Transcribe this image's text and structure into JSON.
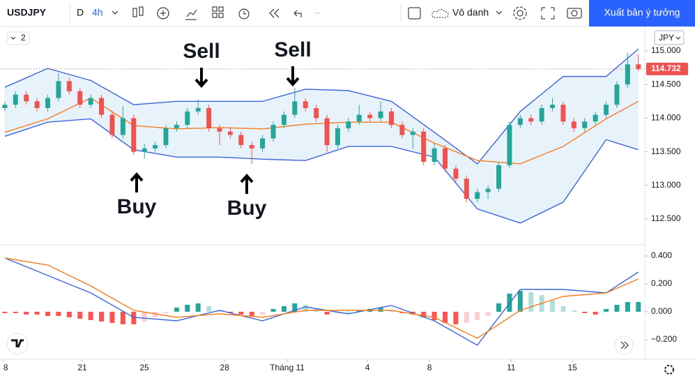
{
  "toolbar": {
    "symbol": "USDJPY",
    "interval_d": "D",
    "interval": "4h",
    "layout_name": "Vô danh",
    "publish": "Xuất bản ý tưởng",
    "indicator_count": "2",
    "currency": "JPY"
  },
  "chart_data": [
    {
      "type": "candlestick",
      "up_color": "#26a69a",
      "down_color": "#ef5350",
      "band_fill": "#e8f2fb",
      "annotations": [
        "Sell",
        "Sell",
        "Buy",
        "Buy"
      ],
      "xlim": [
        -0.45,
        59.6
      ],
      "xticks": [
        {
          "value": -0.13,
          "label": "8"
        },
        {
          "value": 7.21,
          "label": "21"
        },
        {
          "value": 12.99,
          "label": "25"
        },
        {
          "value": 20.46,
          "label": "28"
        },
        {
          "value": 26.3,
          "label": "Tháng 11"
        },
        {
          "value": 33.77,
          "label": "4"
        },
        {
          "value": 39.55,
          "label": "8"
        },
        {
          "value": 47.15,
          "label": "11"
        },
        {
          "value": 52.86,
          "label": "15"
        }
      ],
      "ylim": [
        112.127,
        115.363
      ],
      "yticks": [
        {
          "value": 112.5,
          "label": "112.500"
        },
        {
          "value": 113,
          "label": "113.000"
        },
        {
          "value": 113.5,
          "label": "113.500"
        },
        {
          "value": 114,
          "label": "114.000"
        },
        {
          "value": 114.5,
          "label": "114.500"
        },
        {
          "value": 115,
          "label": "115.000"
        }
      ],
      "candles": [
        [
          114.15,
          114.25,
          114.1,
          114.2
        ],
        [
          114.2,
          114.4,
          114.15,
          114.35
        ],
        [
          114.35,
          114.4,
          114.2,
          114.25
        ],
        [
          114.25,
          114.3,
          114.1,
          114.15
        ],
        [
          114.15,
          114.35,
          114.1,
          114.3
        ],
        [
          114.3,
          114.67,
          114.25,
          114.55
        ],
        [
          114.55,
          114.6,
          114.35,
          114.4
        ],
        [
          114.4,
          114.45,
          114.15,
          114.2
        ],
        [
          114.2,
          114.35,
          114.15,
          114.3
        ],
        [
          114.3,
          114.35,
          114,
          114.05
        ],
        [
          114.05,
          114.1,
          113.7,
          113.75
        ],
        [
          113.75,
          114.18,
          113.7,
          114
        ],
        [
          114,
          114.05,
          113.45,
          113.5
        ],
        [
          113.5,
          113.62,
          113.4,
          113.55
        ],
        [
          113.55,
          113.65,
          113.5,
          113.6
        ],
        [
          113.6,
          113.9,
          113.55,
          113.85
        ],
        [
          113.85,
          113.95,
          113.8,
          113.9
        ],
        [
          113.9,
          114.15,
          113.85,
          114.1
        ],
        [
          114.1,
          114.28,
          114.05,
          114.15
        ],
        [
          114.15,
          114.2,
          113.8,
          113.85
        ],
        [
          113.85,
          113.9,
          113.6,
          113.8
        ],
        [
          113.8,
          113.85,
          113.7,
          113.75
        ],
        [
          113.75,
          113.8,
          113.55,
          113.6
        ],
        [
          113.6,
          113.65,
          113.32,
          113.55
        ],
        [
          113.55,
          113.75,
          113.5,
          113.7
        ],
        [
          113.7,
          113.95,
          113.65,
          113.9
        ],
        [
          113.9,
          114.1,
          113.85,
          114.05
        ],
        [
          114.05,
          114.45,
          114,
          114.25
        ],
        [
          114.25,
          114.3,
          114.1,
          114.15
        ],
        [
          114.15,
          114.2,
          113.95,
          114
        ],
        [
          114,
          114.05,
          113.5,
          113.6
        ],
        [
          113.6,
          113.9,
          113.55,
          113.85
        ],
        [
          113.85,
          114,
          113.8,
          113.95
        ],
        [
          113.95,
          114.2,
          113.9,
          114.05
        ],
        [
          114.05,
          114.1,
          113.95,
          114
        ],
        [
          114,
          114.25,
          113.95,
          114.1
        ],
        [
          114.1,
          114.15,
          113.85,
          113.9
        ],
        [
          113.9,
          113.95,
          113.7,
          113.75
        ],
        [
          113.75,
          113.85,
          113.55,
          113.8
        ],
        [
          113.8,
          113.85,
          113.3,
          113.35
        ],
        [
          113.35,
          113.62,
          113.3,
          113.55
        ],
        [
          113.55,
          113.6,
          113.2,
          113.25
        ],
        [
          113.25,
          113.3,
          113.05,
          113.1
        ],
        [
          113.1,
          113.15,
          112.75,
          112.8
        ],
        [
          112.8,
          112.95,
          112.75,
          112.9
        ],
        [
          112.9,
          113,
          112.8,
          112.95
        ],
        [
          112.95,
          113.35,
          112.9,
          113.3
        ],
        [
          113.3,
          113.95,
          113.25,
          113.9
        ],
        [
          113.9,
          114.05,
          113.85,
          114
        ],
        [
          114,
          114.05,
          113.9,
          113.95
        ],
        [
          113.95,
          114.2,
          113.9,
          114.15
        ],
        [
          114.15,
          114.3,
          114.1,
          114.2
        ],
        [
          114.2,
          114.25,
          113.9,
          113.95
        ],
        [
          113.95,
          114,
          113.8,
          113.85
        ],
        [
          113.85,
          114,
          113.8,
          113.95
        ],
        [
          113.95,
          114.1,
          113.9,
          114.05
        ],
        [
          114.05,
          114.25,
          114,
          114.2
        ],
        [
          114.2,
          114.55,
          114.15,
          114.5
        ],
        [
          114.5,
          114.97,
          114.45,
          114.8
        ],
        [
          114.8,
          114.95,
          114.7,
          114.732
        ]
      ],
      "series": [
        {
          "color": "#3a66d6",
          "x": [
            0,
            4,
            8,
            12,
            16,
            20,
            24,
            28,
            32,
            36,
            40,
            44,
            48,
            52,
            56,
            59
          ],
          "values": [
            114.46,
            114.74,
            114.56,
            114.2,
            114.25,
            114.25,
            114.25,
            114.43,
            114.41,
            114.25,
            113.79,
            113.32,
            114.1,
            114.62,
            114.62,
            115.03
          ]
        },
        {
          "color": "#3a66d6",
          "x": [
            0,
            4,
            8,
            12,
            16,
            20,
            24,
            28,
            32,
            36,
            40,
            44,
            48,
            52,
            56,
            59
          ],
          "values": [
            113.73,
            113.94,
            113.99,
            113.53,
            113.42,
            113.42,
            113.39,
            113.37,
            113.58,
            113.58,
            113.42,
            112.65,
            112.44,
            112.75,
            113.68,
            113.53
          ]
        },
        {
          "color": "#f57c1f",
          "x": [
            0,
            4,
            8,
            12,
            16,
            20,
            24,
            28,
            32,
            36,
            40,
            44,
            48,
            52,
            56,
            59
          ],
          "values": [
            113.79,
            113.99,
            114.3,
            113.89,
            113.84,
            113.86,
            113.84,
            113.91,
            113.94,
            113.94,
            113.63,
            113.37,
            113.32,
            113.58,
            113.99,
            114.25
          ]
        }
      ]
    },
    {
      "type": "macd",
      "xlim": [
        -0.45,
        59.6
      ],
      "ylim": [
        -0.34,
        0.475
      ],
      "yticks": [
        {
          "value": -0.2,
          "label": "−0.200"
        },
        {
          "value": 0,
          "label": "0.000"
        },
        {
          "value": 0.2,
          "label": "0.200"
        },
        {
          "value": 0.4,
          "label": "0.400"
        }
      ],
      "histogram": [
        -0.01,
        -0.01,
        -0.02,
        -0.02,
        -0.03,
        -0.03,
        -0.04,
        -0.05,
        -0.06,
        -0.07,
        -0.08,
        -0.09,
        -0.09,
        -0.07,
        -0.04,
        -0.01,
        0.03,
        0.05,
        0.06,
        0.04,
        0.01,
        -0.01,
        -0.02,
        -0.03,
        -0.02,
        0.02,
        0.04,
        0.06,
        0.05,
        0.02,
        -0.02,
        -0.01,
        0,
        0.01,
        0.02,
        0.03,
        0.01,
        -0.01,
        -0.02,
        -0.04,
        -0.06,
        -0.08,
        -0.09,
        -0.08,
        -0.06,
        -0.03,
        0.06,
        0.13,
        0.15,
        0.14,
        0.12,
        0.08,
        0.04,
        0.01,
        -0.01,
        -0.02,
        0.02,
        0.05,
        0.07,
        0.07
      ],
      "histogram_colors": [
        "#26a69a",
        "#b2dfdb",
        "#ff5252",
        "#ffcdd2"
      ],
      "series": [
        {
          "color": "#3a66d6",
          "x": [
            0,
            4,
            8,
            12,
            16,
            20,
            24,
            28,
            32,
            36,
            40,
            44,
            48,
            52,
            56,
            59
          ],
          "values": [
            0.385,
            0.26,
            0.135,
            -0.04,
            -0.065,
            0.01,
            -0.065,
            0.035,
            -0.015,
            0.045,
            -0.065,
            -0.24,
            0.16,
            0.16,
            0.135,
            0.285
          ]
        },
        {
          "color": "#f57c1f",
          "x": [
            0,
            4,
            8,
            12,
            16,
            20,
            24,
            28,
            32,
            36,
            40,
            44,
            48,
            52,
            56,
            59
          ],
          "values": [
            0.385,
            0.335,
            0.185,
            0.01,
            -0.04,
            -0.015,
            -0.04,
            0.01,
            0.01,
            0.01,
            -0.04,
            -0.19,
            0.01,
            0.11,
            0.135,
            0.235
          ]
        }
      ]
    }
  ]
}
